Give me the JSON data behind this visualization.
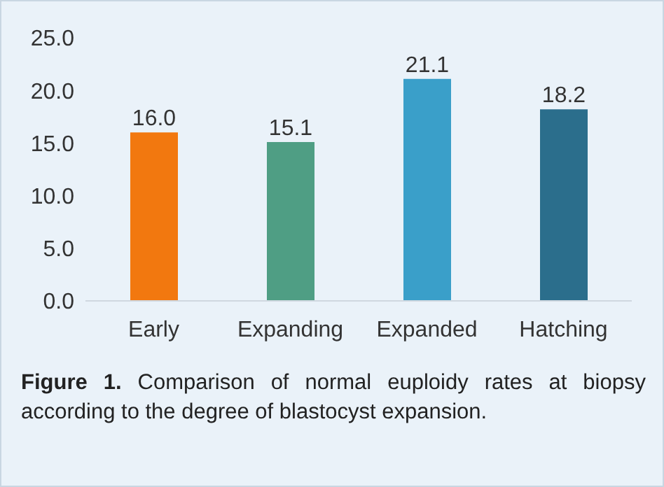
{
  "chart_data": {
    "type": "bar",
    "categories": [
      "Early",
      "Expanding",
      "Expanded",
      "Hatching"
    ],
    "values": [
      16.0,
      15.1,
      21.1,
      18.2
    ],
    "colors": [
      "#f2780f",
      "#4f9e84",
      "#3a9fc9",
      "#2b6e8c"
    ],
    "value_labels": [
      "16.0",
      "15.1",
      "21.1",
      "18.2"
    ],
    "ylim": [
      0,
      25
    ],
    "yticks": [
      {
        "value": 0,
        "label": "0.0"
      },
      {
        "value": 5,
        "label": "5.0"
      },
      {
        "value": 10,
        "label": "10.0"
      },
      {
        "value": 15,
        "label": "15.0"
      },
      {
        "value": 20,
        "label": "20.0"
      },
      {
        "value": 25,
        "label": "25.0"
      }
    ],
    "grid": false,
    "legend": false,
    "annotations": [
      "Figure 1. Comparison of normal euploidy rates at biopsy according to the degree of blastocyst expansion."
    ]
  }
}
